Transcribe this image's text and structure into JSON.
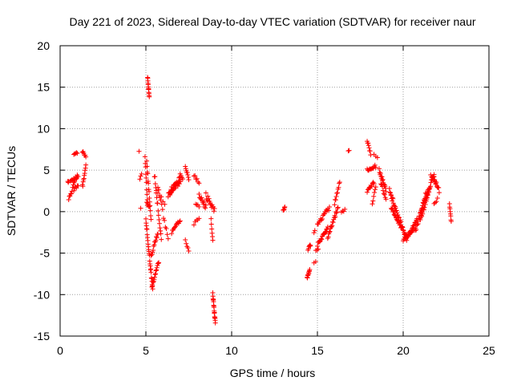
{
  "chart_data": {
    "type": "scatter",
    "title": "Day 221 of 2023, Sidereal Day-to-day VTEC variation (SDTVAR) for receiver naur",
    "xlabel": "GPS time / hours",
    "ylabel": "SDTVAR / TECUs",
    "xlim": [
      0,
      25
    ],
    "ylim": [
      -15,
      20
    ],
    "xticks": [
      0,
      5,
      10,
      15,
      20,
      25
    ],
    "yticks": [
      -15,
      -10,
      -5,
      0,
      5,
      10,
      15,
      20
    ],
    "grid": true,
    "marker": "+",
    "marker_color": "#ff0000",
    "series": [
      {
        "name": "SDTVAR",
        "segments": [
          {
            "x0": 0.45,
            "x1": 0.5,
            "y0": 3.8,
            "y1": 3.5,
            "n": 3,
            "jitter": 0.3
          },
          {
            "x0": 0.5,
            "x1": 1.0,
            "y0": 1.5,
            "y1": 4.5,
            "n": 14,
            "jitter": 0.5
          },
          {
            "x0": 0.6,
            "x1": 1.05,
            "y0": 3.6,
            "y1": 4.3,
            "n": 10,
            "jitter": 0.4
          },
          {
            "x0": 0.8,
            "x1": 1.05,
            "y0": 2.5,
            "y1": 3.3,
            "n": 6,
            "jitter": 0.4
          },
          {
            "x0": 0.8,
            "x1": 1.0,
            "y0": 6.9,
            "y1": 7.1,
            "n": 5,
            "jitter": 0.2
          },
          {
            "x0": 1.3,
            "x1": 1.5,
            "y0": 7.3,
            "y1": 6.6,
            "n": 6,
            "jitter": 0.3
          },
          {
            "x0": 1.3,
            "x1": 1.5,
            "y0": 3.0,
            "y1": 5.5,
            "n": 10,
            "jitter": 0.5
          },
          {
            "x0": 4.6,
            "x1": 4.7,
            "y0": 7.3,
            "y1": 0.4,
            "n": 3,
            "jitter": 0.2
          },
          {
            "x0": 4.7,
            "x1": 4.75,
            "y0": 4.3,
            "y1": 4.5,
            "n": 2,
            "jitter": 0.1
          },
          {
            "x0": 5.1,
            "x1": 5.2,
            "y0": 16.2,
            "y1": 13.8,
            "n": 12,
            "jitter": 0.2
          },
          {
            "x0": 4.95,
            "x1": 5.1,
            "y0": 6.5,
            "y1": 0.9,
            "n": 10,
            "jitter": 0.3
          },
          {
            "x0": 5.05,
            "x1": 5.3,
            "y0": 6.0,
            "y1": -1.0,
            "n": 14,
            "jitter": 0.5
          },
          {
            "x0": 5.05,
            "x1": 5.2,
            "y0": 1.0,
            "y1": 0.5,
            "n": 5,
            "jitter": 0.3
          },
          {
            "x0": 5.0,
            "x1": 5.4,
            "y0": -1.0,
            "y1": -9.5,
            "n": 26,
            "jitter": 0.5
          },
          {
            "x0": 5.35,
            "x1": 5.75,
            "y0": -9.0,
            "y1": -6.0,
            "n": 16,
            "jitter": 0.4
          },
          {
            "x0": 5.3,
            "x1": 5.7,
            "y0": -5.5,
            "y1": -2.5,
            "n": 14,
            "jitter": 0.5
          },
          {
            "x0": 5.5,
            "x1": 5.9,
            "y0": 4.5,
            "y1": -3.5,
            "n": 16,
            "jitter": 0.6
          },
          {
            "x0": 5.7,
            "x1": 6.3,
            "y0": 3.0,
            "y1": -3.5,
            "n": 12,
            "jitter": 0.6
          },
          {
            "x0": 5.6,
            "x1": 6.1,
            "y0": 2.5,
            "y1": 1.0,
            "n": 6,
            "jitter": 0.5
          },
          {
            "x0": 6.3,
            "x1": 7.0,
            "y0": 2.0,
            "y1": 4.0,
            "n": 30,
            "jitter": 0.6
          },
          {
            "x0": 6.5,
            "x1": 7.0,
            "y0": 2.8,
            "y1": 3.5,
            "n": 12,
            "jitter": 0.6
          },
          {
            "x0": 6.5,
            "x1": 7.0,
            "y0": -2.5,
            "y1": -1.0,
            "n": 12,
            "jitter": 0.5
          },
          {
            "x0": 7.0,
            "x1": 7.15,
            "y0": 4.5,
            "y1": 3.8,
            "n": 4,
            "jitter": 0.3
          },
          {
            "x0": 7.3,
            "x1": 7.5,
            "y0": 5.5,
            "y1": 3.9,
            "n": 8,
            "jitter": 0.3
          },
          {
            "x0": 7.3,
            "x1": 7.5,
            "y0": -3.5,
            "y1": -4.8,
            "n": 5,
            "jitter": 0.3
          },
          {
            "x0": 7.8,
            "x1": 8.1,
            "y0": 4.4,
            "y1": 3.5,
            "n": 6,
            "jitter": 0.3
          },
          {
            "x0": 7.8,
            "x1": 8.1,
            "y0": -1.5,
            "y1": -0.8,
            "n": 5,
            "jitter": 0.3
          },
          {
            "x0": 7.9,
            "x1": 8.1,
            "y0": 1.0,
            "y1": 0.5,
            "n": 4,
            "jitter": 0.3
          },
          {
            "x0": 8.1,
            "x1": 8.5,
            "y0": 2.0,
            "y1": 0.5,
            "n": 12,
            "jitter": 0.6
          },
          {
            "x0": 8.5,
            "x1": 9.0,
            "y0": 2.0,
            "y1": 0.0,
            "n": 15,
            "jitter": 0.8
          },
          {
            "x0": 8.8,
            "x1": 8.9,
            "y0": -1.0,
            "y1": -3.5,
            "n": 6,
            "jitter": 0.3
          },
          {
            "x0": 8.9,
            "x1": 9.05,
            "y0": -10.0,
            "y1": -13.5,
            "n": 18,
            "jitter": 0.5
          },
          {
            "x0": 13.0,
            "x1": 13.1,
            "y0": 0.1,
            "y1": 0.5,
            "n": 6,
            "jitter": 0.2
          },
          {
            "x0": 14.4,
            "x1": 14.55,
            "y0": -8.0,
            "y1": -7.0,
            "n": 10,
            "jitter": 0.3
          },
          {
            "x0": 14.45,
            "x1": 14.6,
            "y0": -4.5,
            "y1": -4.0,
            "n": 6,
            "jitter": 0.3
          },
          {
            "x0": 14.8,
            "x1": 14.9,
            "y0": -6.2,
            "y1": -6.0,
            "n": 2,
            "jitter": 0.1
          },
          {
            "x0": 14.8,
            "x1": 14.85,
            "y0": -2.5,
            "y1": -2.3,
            "n": 2,
            "jitter": 0.1
          },
          {
            "x0": 14.9,
            "x1": 15.05,
            "y0": -4.7,
            "y1": -4.5,
            "n": 3,
            "jitter": 0.1
          },
          {
            "x0": 15.0,
            "x1": 15.6,
            "y0": -4.0,
            "y1": -2.0,
            "n": 18,
            "jitter": 0.4
          },
          {
            "x0": 15.0,
            "x1": 15.7,
            "y0": -1.5,
            "y1": 0.5,
            "n": 16,
            "jitter": 0.5
          },
          {
            "x0": 15.6,
            "x1": 16.2,
            "y0": -3.0,
            "y1": 0.5,
            "n": 20,
            "jitter": 0.5
          },
          {
            "x0": 16.0,
            "x1": 16.3,
            "y0": 1.0,
            "y1": 3.5,
            "n": 10,
            "jitter": 0.4
          },
          {
            "x0": 16.4,
            "x1": 16.6,
            "y0": 0.0,
            "y1": 0.2,
            "n": 4,
            "jitter": 0.2
          },
          {
            "x0": 16.8,
            "x1": 16.85,
            "y0": 7.3,
            "y1": 7.4,
            "n": 2,
            "jitter": 0.1
          },
          {
            "x0": 17.9,
            "x1": 18.1,
            "y0": 8.6,
            "y1": 7.0,
            "n": 8,
            "jitter": 0.4
          },
          {
            "x0": 17.9,
            "x1": 18.4,
            "y0": 5.0,
            "y1": 5.5,
            "n": 12,
            "jitter": 0.4
          },
          {
            "x0": 17.9,
            "x1": 18.3,
            "y0": 2.5,
            "y1": 3.5,
            "n": 10,
            "jitter": 0.4
          },
          {
            "x0": 18.2,
            "x1": 18.4,
            "y0": 1.0,
            "y1": 3.0,
            "n": 6,
            "jitter": 0.4
          },
          {
            "x0": 18.3,
            "x1": 18.5,
            "y0": 7.0,
            "y1": 6.5,
            "n": 3,
            "jitter": 0.2
          },
          {
            "x0": 18.6,
            "x1": 19.0,
            "y0": 5.0,
            "y1": 2.5,
            "n": 16,
            "jitter": 0.5
          },
          {
            "x0": 18.7,
            "x1": 19.0,
            "y0": 3.5,
            "y1": 1.5,
            "n": 8,
            "jitter": 0.4
          },
          {
            "x0": 19.2,
            "x1": 20.2,
            "y0": 2.5,
            "y1": -3.5,
            "n": 40,
            "jitter": 0.6
          },
          {
            "x0": 19.3,
            "x1": 19.9,
            "y0": 0.5,
            "y1": -2.0,
            "n": 18,
            "jitter": 0.5
          },
          {
            "x0": 20.0,
            "x1": 20.6,
            "y0": -3.5,
            "y1": -2.0,
            "n": 20,
            "jitter": 0.5
          },
          {
            "x0": 20.3,
            "x1": 20.8,
            "y0": -3.0,
            "y1": -1.0,
            "n": 14,
            "jitter": 0.5
          },
          {
            "x0": 20.7,
            "x1": 21.3,
            "y0": -2.5,
            "y1": 2.0,
            "n": 22,
            "jitter": 0.6
          },
          {
            "x0": 21.0,
            "x1": 21.5,
            "y0": -1.0,
            "y1": 2.5,
            "n": 20,
            "jitter": 0.7
          },
          {
            "x0": 21.3,
            "x1": 21.8,
            "y0": 1.5,
            "y1": 4.5,
            "n": 20,
            "jitter": 0.6
          },
          {
            "x0": 21.6,
            "x1": 21.9,
            "y0": 4.3,
            "y1": 3.5,
            "n": 6,
            "jitter": 0.3
          },
          {
            "x0": 21.8,
            "x1": 22.1,
            "y0": 4.0,
            "y1": 2.5,
            "n": 10,
            "jitter": 0.5
          },
          {
            "x0": 21.8,
            "x1": 22.0,
            "y0": 1.0,
            "y1": 1.5,
            "n": 4,
            "jitter": 0.3
          },
          {
            "x0": 22.7,
            "x1": 22.8,
            "y0": 1.0,
            "y1": -1.2,
            "n": 8,
            "jitter": 0.3
          }
        ]
      }
    ]
  }
}
